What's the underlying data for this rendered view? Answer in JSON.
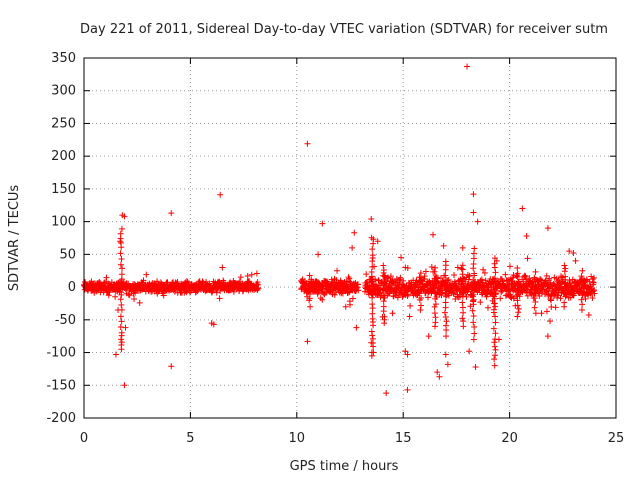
{
  "chart_data": {
    "type": "scatter",
    "title": "Day 221 of 2011, Sidereal Day-to-day VTEC variation (SDTVAR) for receiver sutm",
    "xlabel": "GPS time / hours",
    "ylabel": "SDTVAR / TECUs",
    "xlim": [
      0,
      25
    ],
    "ylim": [
      -200,
      350
    ],
    "xticks": [
      0,
      5,
      10,
      15,
      20,
      25
    ],
    "yticks": [
      -200,
      -150,
      -100,
      -50,
      0,
      50,
      100,
      150,
      200,
      250,
      300,
      350
    ],
    "grid": true,
    "marker": "+",
    "series_color": "#ff0000",
    "series": [
      {
        "name": "SDTVAR",
        "outliers": [
          [
            1.5,
            -103
          ],
          [
            1.8,
            110
          ],
          [
            1.9,
            108
          ],
          [
            1.9,
            -150
          ],
          [
            1.95,
            -62
          ],
          [
            1.7,
            70
          ],
          [
            1.6,
            -35
          ],
          [
            4.1,
            113
          ],
          [
            4.1,
            -121
          ],
          [
            6.0,
            -55
          ],
          [
            6.1,
            -57
          ],
          [
            6.4,
            141
          ],
          [
            6.5,
            30
          ],
          [
            10.5,
            219
          ],
          [
            10.5,
            -83
          ],
          [
            11.2,
            97
          ],
          [
            11.0,
            50
          ],
          [
            12.6,
            60
          ],
          [
            12.7,
            83
          ],
          [
            12.8,
            -62
          ],
          [
            12.5,
            -27
          ],
          [
            13.5,
            104
          ],
          [
            13.6,
            73
          ],
          [
            13.8,
            70
          ],
          [
            14.2,
            -162
          ],
          [
            14.5,
            -40
          ],
          [
            14.9,
            45
          ],
          [
            15.1,
            30
          ],
          [
            15.1,
            -98
          ],
          [
            15.2,
            -103
          ],
          [
            15.2,
            -157
          ],
          [
            15.3,
            -45
          ],
          [
            16.2,
            -75
          ],
          [
            16.4,
            80
          ],
          [
            16.6,
            -130
          ],
          [
            16.7,
            -137
          ],
          [
            16.9,
            63
          ],
          [
            17.0,
            -103
          ],
          [
            17.1,
            -118
          ],
          [
            18.0,
            337
          ],
          [
            18.3,
            142
          ],
          [
            18.3,
            114
          ],
          [
            18.5,
            100
          ],
          [
            18.1,
            -98
          ],
          [
            18.4,
            -122
          ],
          [
            19.3,
            -120
          ],
          [
            19.5,
            -80
          ],
          [
            20.6,
            120
          ],
          [
            20.8,
            78
          ],
          [
            21.5,
            -40
          ],
          [
            21.8,
            90
          ],
          [
            21.8,
            -75
          ],
          [
            21.9,
            -52
          ],
          [
            22.8,
            55
          ],
          [
            23.0,
            52
          ],
          [
            23.1,
            40
          ],
          [
            19.4,
            40
          ],
          [
            13.6,
            -100
          ],
          [
            13.5,
            -85
          ],
          [
            17.8,
            60
          ]
        ],
        "dense_segments": [
          {
            "from": 0.0,
            "to": 8.2,
            "spread": 6
          },
          {
            "from": 10.2,
            "to": 12.9,
            "spread": 9
          },
          {
            "from": 13.2,
            "to": 24.0,
            "spread": 12
          }
        ]
      }
    ]
  }
}
